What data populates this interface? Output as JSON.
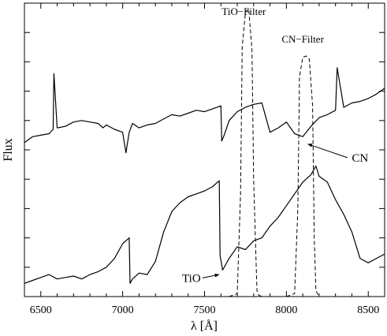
{
  "chart_data": {
    "type": "line",
    "xlabel": "λ [Å]",
    "ylabel": "Flux",
    "xlim": [
      6400,
      8600
    ],
    "ylim": [
      0,
      10
    ],
    "xticks": [
      6500,
      7000,
      7500,
      8000,
      8500
    ],
    "grid": false,
    "legend": "none",
    "annotations": [
      {
        "text": "TiO−Filter",
        "x": 7740,
        "y": 9.6
      },
      {
        "text": "CN−Filter",
        "x": 8100,
        "y": 8.65
      },
      {
        "text": "CN",
        "x": 8450,
        "y": 4.6,
        "arrow_to": [
          8130,
          5.2
        ]
      },
      {
        "text": "TiO",
        "x": 7420,
        "y": 0.5,
        "arrow_to": [
          7590,
          0.75
        ]
      }
    ],
    "series": [
      {
        "style": "solid",
        "x": [
          6400,
          6450,
          6500,
          6550,
          6575,
          6580,
          6600,
          6650,
          6700,
          6750,
          6800,
          6850,
          6880,
          6900,
          6950,
          7000,
          7020,
          7040,
          7060,
          7100,
          7150,
          7200,
          7250,
          7300,
          7350,
          7400,
          7450,
          7500,
          7550,
          7600,
          7605,
          7620,
          7650,
          7700,
          7750,
          7800,
          7850,
          7870,
          7900,
          7950,
          8000,
          8050,
          8100,
          8150,
          8200,
          8250,
          8300,
          8310,
          8350,
          8400,
          8450,
          8500,
          8550,
          8600
        ],
        "y": [
          5.25,
          5.45,
          5.5,
          5.55,
          5.7,
          7.6,
          5.75,
          5.8,
          5.95,
          6.0,
          5.95,
          5.9,
          5.75,
          5.85,
          5.7,
          5.6,
          4.9,
          5.6,
          5.9,
          5.75,
          5.85,
          5.9,
          6.05,
          6.2,
          6.15,
          6.25,
          6.35,
          6.3,
          6.4,
          6.5,
          5.3,
          5.5,
          6.0,
          6.3,
          6.45,
          6.55,
          6.6,
          6.2,
          5.6,
          5.75,
          5.95,
          5.55,
          5.45,
          5.8,
          6.1,
          6.2,
          6.35,
          7.8,
          6.45,
          6.6,
          6.65,
          6.75,
          6.9,
          7.1
        ]
      },
      {
        "style": "solid",
        "x": [
          6400,
          6450,
          6500,
          6550,
          6600,
          6650,
          6700,
          6750,
          6800,
          6850,
          6900,
          6950,
          7000,
          7040,
          7045,
          7060,
          7100,
          7150,
          7200,
          7250,
          7300,
          7350,
          7400,
          7450,
          7500,
          7550,
          7590,
          7595,
          7610,
          7650,
          7700,
          7750,
          7800,
          7850,
          7900,
          7950,
          8000,
          8050,
          8100,
          8150,
          8180,
          8200,
          8250,
          8300,
          8350,
          8400,
          8450,
          8500,
          8550,
          8600
        ],
        "y": [
          0.45,
          0.55,
          0.65,
          0.75,
          0.6,
          0.65,
          0.7,
          0.6,
          0.75,
          0.85,
          1.0,
          1.3,
          1.8,
          2.0,
          0.45,
          0.6,
          0.8,
          0.75,
          1.2,
          2.2,
          2.9,
          3.2,
          3.4,
          3.5,
          3.6,
          3.75,
          3.95,
          1.4,
          0.9,
          1.3,
          1.7,
          1.6,
          1.9,
          2.0,
          2.4,
          2.7,
          3.1,
          3.5,
          3.9,
          4.15,
          4.45,
          4.1,
          3.9,
          3.3,
          2.8,
          2.2,
          1.3,
          1.15,
          1.3,
          1.45
        ]
      },
      {
        "style": "dashed",
        "x": [
          7650,
          7700,
          7720,
          7730,
          7750,
          7770,
          7790,
          7800,
          7820,
          7830,
          7850,
          7900
        ],
        "y": [
          0.0,
          0.1,
          3.5,
          8.5,
          9.7,
          9.8,
          8.4,
          4.0,
          0.2,
          0.05,
          0.0,
          0.0
        ],
        "label": "TiO−Filter"
      },
      {
        "style": "dashed",
        "x": [
          8000,
          8050,
          8070,
          8080,
          8100,
          8120,
          8140,
          8160,
          8170,
          8180,
          8200,
          8250
        ],
        "y": [
          0.0,
          0.1,
          3.0,
          7.5,
          8.15,
          8.2,
          8.1,
          6.5,
          2.0,
          0.2,
          0.0,
          0.0
        ],
        "label": "CN−Filter"
      }
    ]
  }
}
